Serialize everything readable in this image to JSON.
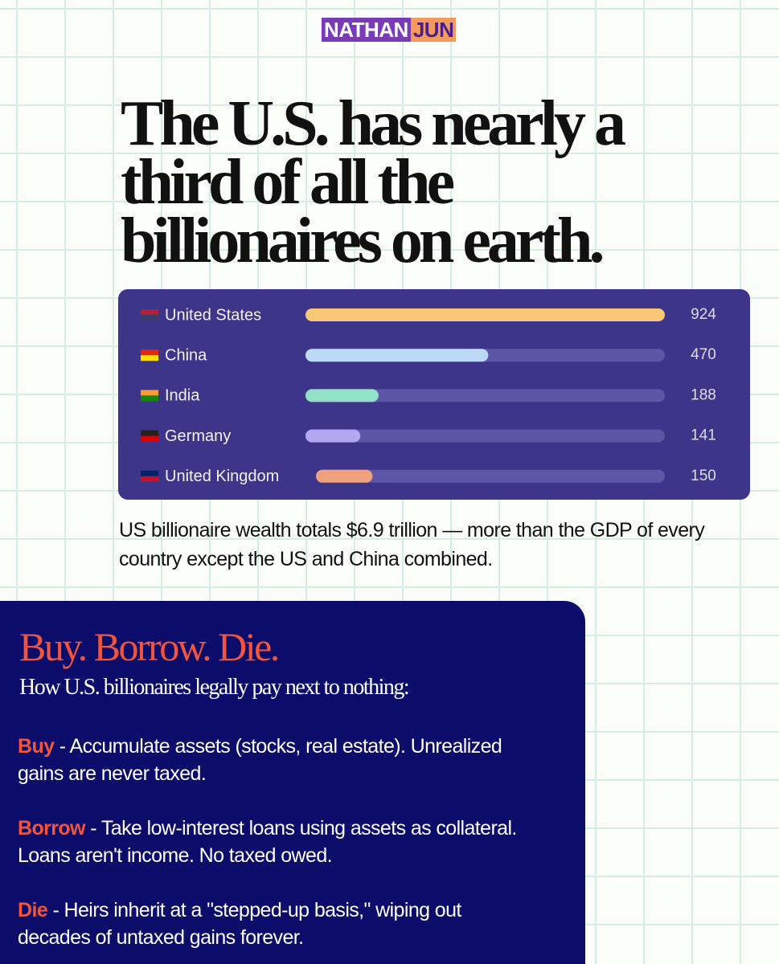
{
  "brand": {
    "first": "NATHAN",
    "last": "JUN"
  },
  "headline": "The U.S. has nearly a third of all the billionaires on earth.",
  "chart_data": {
    "type": "bar",
    "orientation": "horizontal",
    "categories": [
      "United States",
      "China",
      "India",
      "Germany",
      "United Kingdom"
    ],
    "values": [
      924,
      470,
      188,
      141,
      150
    ],
    "colors": [
      "#f9c874",
      "#bcd9f5",
      "#93dfc7",
      "#b2a7f0",
      "#f0a07c"
    ]
  },
  "caption": "US billionaire wealth totals $6.9 trillion — more than the GDP of every country except the US and China combined.",
  "panel": {
    "title": "Buy. Borrow. Die.",
    "subtitle": "How U.S. billionaires legally pay next to nothing:",
    "items": [
      {
        "term": "Buy",
        "text": "- Accumulate assets (stocks, real estate). Unrealized gains are never taxed."
      },
      {
        "term": "Borrow",
        "text": "- Take low-interest loans using assets as collateral. Loans aren't income. No taxed owed."
      },
      {
        "term": "Die",
        "text": "- Heirs inherit at a \"stepped-up basis,\" wiping out decades of untaxed gains forever."
      }
    ]
  }
}
